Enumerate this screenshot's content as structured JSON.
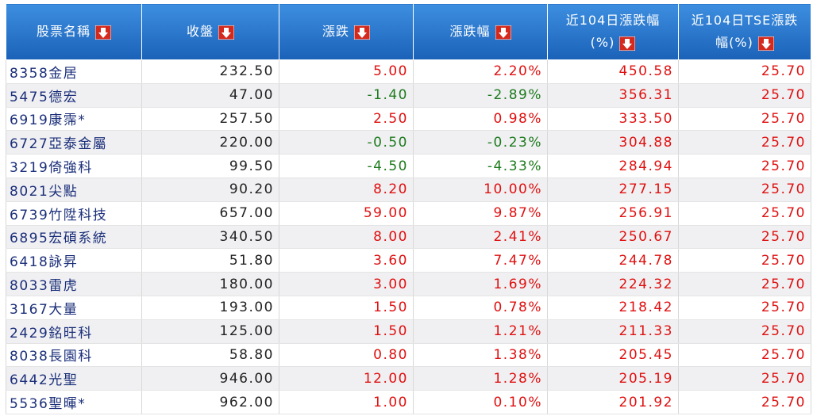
{
  "table": {
    "headers": [
      [
        "股票名稱"
      ],
      [
        "收盤"
      ],
      [
        "漲跌"
      ],
      [
        "漲跌幅"
      ],
      [
        "近104日漲跌幅",
        "(%)"
      ],
      [
        "近104日TSE漲跌",
        "幅(%)"
      ]
    ],
    "rows": [
      [
        "8358金居",
        "232.50",
        "5.00",
        "2.20%",
        "450.58",
        "25.70"
      ],
      [
        "5475德宏",
        "47.00",
        "-1.40",
        "-2.89%",
        "356.31",
        "25.70"
      ],
      [
        "6919康霈*",
        "257.50",
        "2.50",
        "0.98%",
        "333.50",
        "25.70"
      ],
      [
        "6727亞泰金屬",
        "220.00",
        "-0.50",
        "-0.23%",
        "304.88",
        "25.70"
      ],
      [
        "3219倚強科",
        "99.50",
        "-4.50",
        "-4.33%",
        "284.94",
        "25.70"
      ],
      [
        "8021尖點",
        "90.20",
        "8.20",
        "10.00%",
        "277.15",
        "25.70"
      ],
      [
        "6739竹陞科技",
        "657.00",
        "59.00",
        "9.87%",
        "256.91",
        "25.70"
      ],
      [
        "6895宏碩系統",
        "340.50",
        "8.00",
        "2.41%",
        "250.67",
        "25.70"
      ],
      [
        "6418詠昇",
        "51.80",
        "3.60",
        "7.47%",
        "244.78",
        "25.70"
      ],
      [
        "8033雷虎",
        "180.00",
        "3.00",
        "1.69%",
        "224.32",
        "25.70"
      ],
      [
        "3167大量",
        "193.00",
        "1.50",
        "0.78%",
        "218.42",
        "25.70"
      ],
      [
        "2429銘旺科",
        "125.00",
        "1.50",
        "1.21%",
        "211.33",
        "25.70"
      ],
      [
        "8038長園科",
        "58.80",
        "0.80",
        "1.38%",
        "205.45",
        "25.70"
      ],
      [
        "6442光聖",
        "946.00",
        "12.00",
        "1.28%",
        "205.19",
        "25.70"
      ],
      [
        "5536聖暉*",
        "962.00",
        "1.00",
        "0.10%",
        "201.92",
        "25.70"
      ]
    ]
  }
}
